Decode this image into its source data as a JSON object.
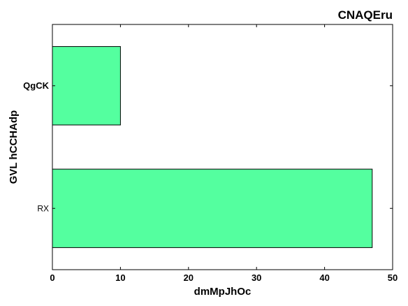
{
  "chart_data": {
    "type": "bar",
    "orientation": "horizontal",
    "title": "CNAQEru",
    "xlabel": "dmMpJhOc",
    "ylabel": "GVL hCCHAdp",
    "categories": [
      "RX",
      "QgCK"
    ],
    "values": [
      47,
      10
    ],
    "xlim": [
      0,
      50
    ],
    "xticks": [
      0,
      10,
      20,
      30,
      40,
      50
    ],
    "grid": false,
    "bar_color": "#54ff9f",
    "edge_color": "#000000"
  }
}
